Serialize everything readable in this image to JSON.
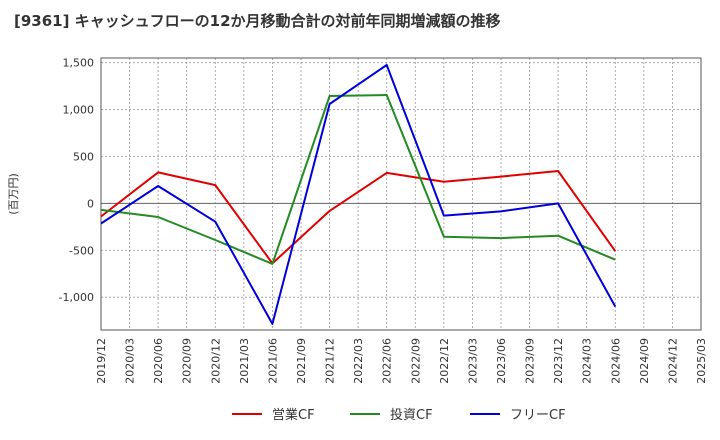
{
  "chart_data": {
    "type": "line",
    "title": "[9361]  キャッシュフローの12か月移動合計の対前年同期増減額の推移",
    "xlabel": "",
    "ylabel": "(百万円)",
    "ylim": [
      -1350,
      1550
    ],
    "yticks": [
      1500,
      1000,
      500,
      0,
      -500,
      -1000
    ],
    "ytick_labels": [
      "1,500",
      "1,000",
      "500",
      "0",
      "-500",
      "-1,000"
    ],
    "x_ticks": [
      "2019/12",
      "2020/03",
      "2020/06",
      "2020/09",
      "2020/12",
      "2021/03",
      "2021/06",
      "2021/09",
      "2021/12",
      "2022/03",
      "2022/06",
      "2022/09",
      "2022/12",
      "2023/03",
      "2023/06",
      "2023/09",
      "2023/12",
      "2024/03",
      "2024/06",
      "2024/09",
      "2024/12",
      "2025/03"
    ],
    "grid": true,
    "legend_position": "bottom",
    "series": [
      {
        "name": "営業CF",
        "color": "#e00000",
        "points": [
          [
            "2019/12",
            -140
          ],
          [
            "2020/06",
            330
          ],
          [
            "2020/12",
            195
          ],
          [
            "2021/06",
            -640
          ],
          [
            "2021/12",
            -80
          ],
          [
            "2022/06",
            325
          ],
          [
            "2022/12",
            230
          ],
          [
            "2023/06",
            285
          ],
          [
            "2023/12",
            345
          ],
          [
            "2024/06",
            -510
          ]
        ]
      },
      {
        "name": "投資CF",
        "color": "#228b22",
        "points": [
          [
            "2019/12",
            -70
          ],
          [
            "2020/06",
            -145
          ],
          [
            "2020/12",
            -390
          ],
          [
            "2021/06",
            -645
          ],
          [
            "2021/12",
            1145
          ],
          [
            "2022/06",
            1155
          ],
          [
            "2022/12",
            -355
          ],
          [
            "2023/06",
            -370
          ],
          [
            "2023/12",
            -345
          ],
          [
            "2024/06",
            -600
          ]
        ]
      },
      {
        "name": "フリーCF",
        "color": "#0000dd",
        "points": [
          [
            "2019/12",
            -215
          ],
          [
            "2020/06",
            185
          ],
          [
            "2020/12",
            -195
          ],
          [
            "2021/06",
            -1285
          ],
          [
            "2021/12",
            1060
          ],
          [
            "2022/06",
            1475
          ],
          [
            "2022/12",
            -130
          ],
          [
            "2023/06",
            -85
          ],
          [
            "2023/12",
            0
          ],
          [
            "2024/06",
            -1100
          ]
        ]
      }
    ]
  }
}
